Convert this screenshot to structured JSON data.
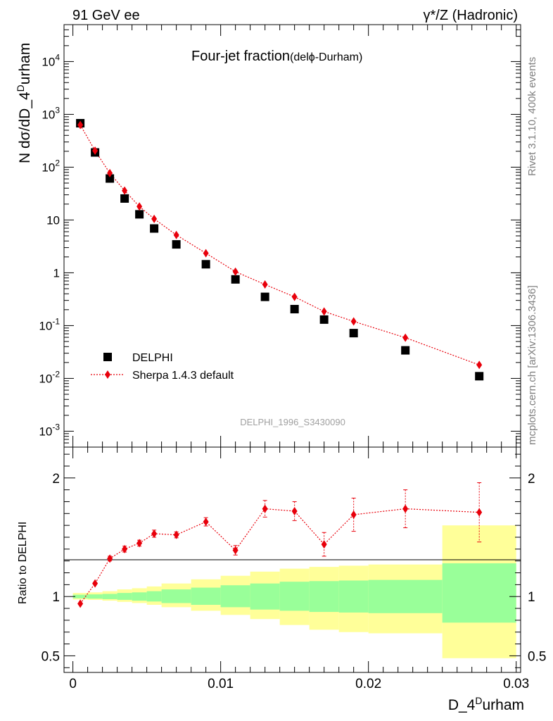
{
  "header": {
    "left": "91 GeV ee",
    "right": "γ*/Z (Hadronic)"
  },
  "side": {
    "rivet": "Rivet 3.1.10,  400k events",
    "mcplots": "mcplots.cern.ch [arXiv:1306.3436]"
  },
  "chart_data": [
    {
      "type": "scatter",
      "panel": "main",
      "title": "Four-jet fraction",
      "title_suffix": "(delϕ-Durham)",
      "ylabel": "N dσ/dD_4Durham",
      "yscale": "log",
      "ylim": [
        0.0005,
        50000
      ],
      "xlim": [
        -0.0006,
        0.0303
      ],
      "y_tick_labels": [
        "10^4",
        "10^3",
        "10^2",
        "10",
        "1",
        "10^-1",
        "10^-2",
        "10^-3"
      ],
      "watermark": "DELPHI_1996_S3430090",
      "legend_position": "bottom-left",
      "series": [
        {
          "name": "DELPHI",
          "marker": "square",
          "color": "#000000",
          "x": [
            0.0005,
            0.0015,
            0.0025,
            0.0035,
            0.0045,
            0.0055,
            0.007,
            0.009,
            0.011,
            0.013,
            0.015,
            0.017,
            0.019,
            0.0225,
            0.0275
          ],
          "y": [
            680,
            190,
            61,
            25.5,
            12.8,
            6.9,
            3.45,
            1.45,
            0.75,
            0.35,
            0.205,
            0.13,
            0.072,
            0.034,
            0.011
          ]
        },
        {
          "name": "Sherpa 1.4.3 default",
          "marker": "diamond",
          "line": "dotted",
          "color": "#e8000b",
          "x": [
            0.0005,
            0.0015,
            0.0025,
            0.0035,
            0.0045,
            0.0055,
            0.007,
            0.009,
            0.011,
            0.013,
            0.015,
            0.017,
            0.019,
            0.0225,
            0.0275
          ],
          "y": [
            630,
            205,
            77,
            36,
            18,
            10.5,
            5.2,
            2.35,
            1.05,
            0.6,
            0.35,
            0.185,
            0.12,
            0.059,
            0.018
          ]
        }
      ]
    },
    {
      "type": "scatter",
      "panel": "ratio",
      "ylabel": "Ratio to DELPHI",
      "xlabel": "D_4Durham",
      "xlim": [
        -0.0006,
        0.0303
      ],
      "ylim": [
        0.36,
        2.26
      ],
      "x_ticks": [
        0,
        0.01,
        0.02,
        0.03
      ],
      "x_tick_labels": [
        "0",
        "0.01",
        "0.02",
        "0.03"
      ],
      "y_ticks": [
        0.5,
        1,
        2
      ],
      "y_tick_labels": [
        "0.5",
        "1",
        "2"
      ],
      "reference_line": 1,
      "bands": {
        "edges": [
          0,
          0.001,
          0.002,
          0.003,
          0.004,
          0.005,
          0.006,
          0.008,
          0.01,
          0.012,
          0.014,
          0.016,
          0.018,
          0.02,
          0.025,
          0.03
        ],
        "green_low": [
          0.985,
          0.982,
          0.978,
          0.972,
          0.965,
          0.958,
          0.945,
          0.93,
          0.91,
          0.89,
          0.88,
          0.87,
          0.865,
          0.86,
          0.78
        ],
        "green_high": [
          1.015,
          1.018,
          1.022,
          1.03,
          1.035,
          1.045,
          1.06,
          1.075,
          1.095,
          1.11,
          1.125,
          1.13,
          1.135,
          1.14,
          1.28
        ],
        "yellow_low": [
          0.975,
          0.972,
          0.965,
          0.955,
          0.945,
          0.93,
          0.91,
          0.88,
          0.845,
          0.81,
          0.76,
          0.72,
          0.7,
          0.69,
          0.48
        ],
        "yellow_high": [
          1.03,
          1.035,
          1.045,
          1.06,
          1.07,
          1.085,
          1.11,
          1.145,
          1.175,
          1.21,
          1.235,
          1.25,
          1.26,
          1.27,
          1.6
        ],
        "green_color": "#99ff99",
        "yellow_color": "#ffff99"
      },
      "series": [
        {
          "name": "Sherpa 1.4.3 default",
          "color": "#e8000b",
          "x": [
            0.0005,
            0.0015,
            0.0025,
            0.0035,
            0.0045,
            0.0055,
            0.007,
            0.009,
            0.011,
            0.013,
            0.015,
            0.017,
            0.019,
            0.0225,
            0.0275
          ],
          "y": [
            0.94,
            1.11,
            1.32,
            1.4,
            1.45,
            1.53,
            1.52,
            1.63,
            1.39,
            1.74,
            1.72,
            1.44,
            1.69,
            1.74,
            1.71
          ],
          "err": [
            0.012,
            0.01,
            0.02,
            0.025,
            0.025,
            0.03,
            0.025,
            0.035,
            0.04,
            0.07,
            0.08,
            0.1,
            0.14,
            0.16,
            0.25
          ]
        }
      ]
    }
  ]
}
